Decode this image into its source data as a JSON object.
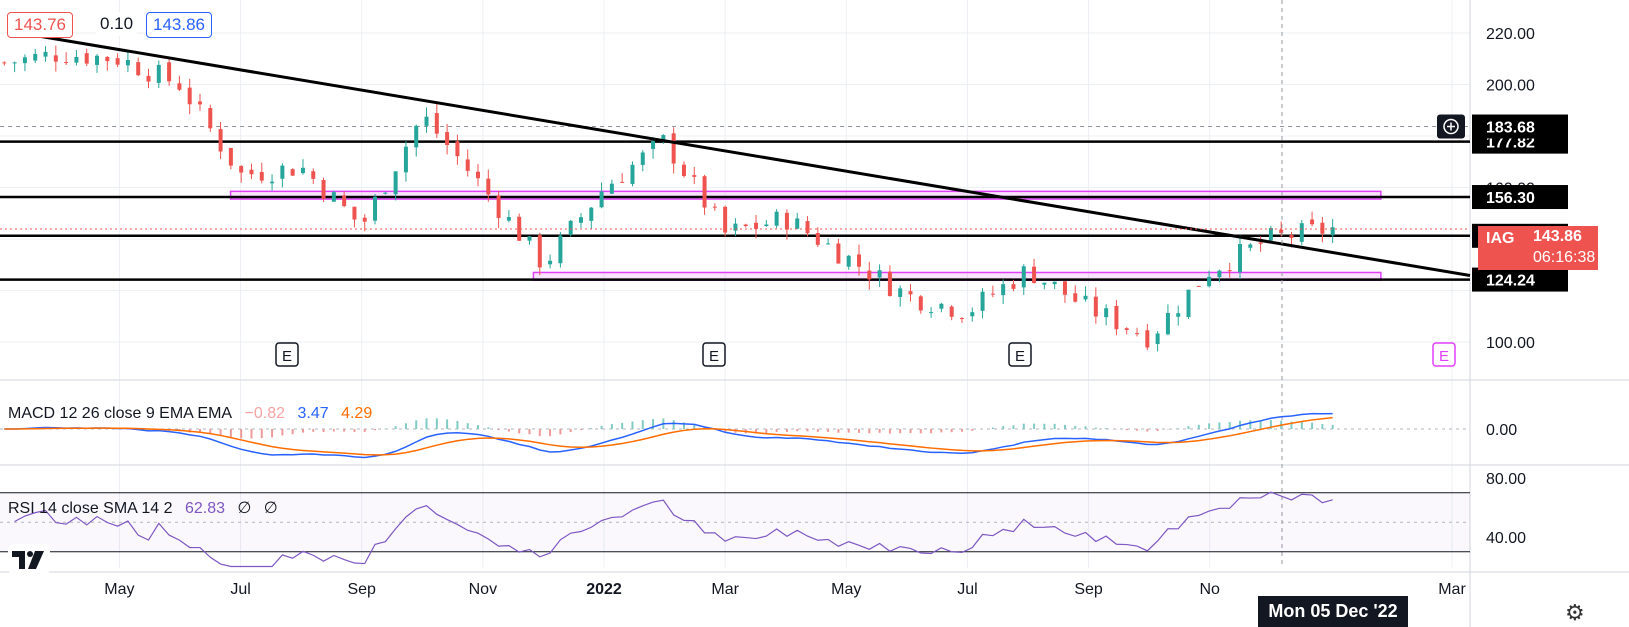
{
  "header": {
    "bid": "143.76",
    "spread": "0.10",
    "ask": "143.86"
  },
  "symbol_badge": {
    "symbol": "IAG",
    "price": "143.86",
    "countdown": "06:16:38"
  },
  "price_axis": {
    "ticks": [
      "220.00",
      "200.00",
      "183.68",
      "177.82",
      "160.00",
      "156.30",
      "141.24",
      "124.24",
      "100.00"
    ],
    "plus_icon": "plus-circle-icon"
  },
  "earnings_markers": [
    "E",
    "E",
    "E",
    "E"
  ],
  "macd": {
    "label": "MACD 12 26 close 9 EMA EMA",
    "hist": "−0.82",
    "macd": "3.47",
    "signal": "4.29",
    "axis": [
      "0.00"
    ]
  },
  "rsi": {
    "label": "RSI 14 close SMA 14 2",
    "value": "62.83",
    "extra1": "∅",
    "extra2": "∅",
    "axis": [
      "80.00",
      "40.00"
    ]
  },
  "time_axis": {
    "labels": [
      "May",
      "Jul",
      "Sep",
      "Nov",
      "2022",
      "Mar",
      "May",
      "Jul",
      "Sep",
      "No",
      "Mar"
    ],
    "crosshair_date": "Mon 05 Dec '22"
  },
  "colors": {
    "up": "#26a69a",
    "down": "#ef5350",
    "macd_line": "#2962ff",
    "signal_line": "#ff6d00",
    "rsi_line": "#7e57c2",
    "zone": "#e040fb",
    "bid_color": "#ef5350",
    "ask_color": "#2962ff"
  },
  "chart_data": {
    "type": "candlestick",
    "x_range": [
      "2021-03",
      "2023-03"
    ],
    "y_range": [
      88,
      230
    ],
    "close_series": [
      [
        "2021-03",
        208
      ],
      [
        "2021-04",
        212
      ],
      [
        "2021-05",
        210
      ],
      [
        "2021-06",
        200
      ],
      [
        "2021-07",
        165
      ],
      [
        "2021-08",
        168
      ],
      [
        "2021-09",
        145
      ],
      [
        "2021-10",
        188
      ],
      [
        "2021-11",
        160
      ],
      [
        "2021-12",
        130
      ],
      [
        "2022-01",
        160
      ],
      [
        "2022-02",
        178
      ],
      [
        "2022-03",
        142
      ],
      [
        "2022-04",
        148
      ],
      [
        "2022-05",
        133
      ],
      [
        "2022-06",
        118
      ],
      [
        "2022-07",
        112
      ],
      [
        "2022-08",
        128
      ],
      [
        "2022-09",
        113
      ],
      [
        "2022-10",
        102
      ],
      [
        "2022-11",
        128
      ],
      [
        "2022-12",
        140
      ],
      [
        "2023-01",
        144
      ]
    ],
    "horizontal_levels": [
      183.68,
      177.82,
      156.3,
      141.24,
      124.24
    ],
    "trendline": {
      "start": [
        "2021-04",
        218
      ],
      "end": [
        "2023-03",
        127
      ]
    },
    "zones": [
      {
        "from": "2021-07",
        "to": "2023-01",
        "low": 155.5,
        "high": 158.5
      },
      {
        "from": "2021-12",
        "to": "2023-01",
        "low": 124.0,
        "high": 127.0
      }
    ],
    "last_price": 143.86,
    "macd": {
      "hist": -0.82,
      "macd": 3.47,
      "signal": 4.29
    },
    "rsi": {
      "value": 62.83,
      "overbought": 70,
      "oversold": 30,
      "range": [
        20,
        85
      ]
    }
  }
}
